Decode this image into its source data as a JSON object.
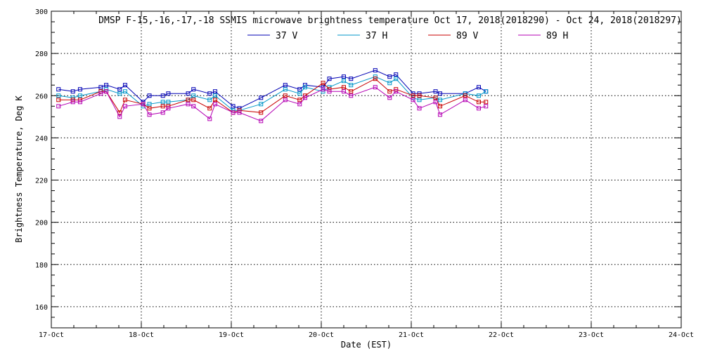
{
  "chart_data": {
    "type": "line",
    "title": "DMSP F-15,-16,-17,-18 SSMIS microwave brightness temperature Oct 17, 2018(2018290) - Oct 24, 2018(2018297)",
    "xlabel": "Date (EST)",
    "ylabel": "Brightness Temperature, Deg K",
    "xlim": [
      0,
      7
    ],
    "ylim": [
      150,
      300
    ],
    "x_ticks": [
      0,
      1,
      2,
      3,
      4,
      5,
      6,
      7
    ],
    "x_tick_labels": [
      "17-Oct",
      "18-Oct",
      "19-Oct",
      "20-Oct",
      "21-Oct",
      "22-Oct",
      "23-Oct",
      "24-Oct"
    ],
    "y_ticks": [
      160,
      180,
      200,
      220,
      240,
      260,
      280,
      300
    ],
    "grid": true,
    "legend_position": "top-center",
    "series": [
      {
        "name": "37 V",
        "color": "#0000b4",
        "x": [
          0.08,
          0.24,
          0.32,
          0.55,
          0.61,
          0.76,
          0.82,
          1.02,
          1.09,
          1.24,
          1.3,
          1.52,
          1.58,
          1.76,
          1.82,
          2.02,
          2.09,
          2.33,
          2.6,
          2.76,
          2.82,
          3.02,
          3.09,
          3.25,
          3.33,
          3.6,
          3.76,
          3.83,
          4.02,
          4.09,
          4.27,
          4.32,
          4.6,
          4.75,
          4.83
        ],
        "y": [
          263,
          262,
          263,
          264,
          265,
          263,
          265,
          257,
          260,
          260,
          261,
          261,
          263,
          261,
          262,
          255,
          254,
          259,
          265,
          263,
          265,
          264,
          268,
          269,
          268,
          272,
          269,
          270,
          261,
          261,
          262,
          261,
          261,
          264,
          262
        ]
      },
      {
        "name": "37 H",
        "color": "#0096c8",
        "x": [
          0.08,
          0.24,
          0.32,
          0.55,
          0.61,
          0.76,
          0.82,
          1.02,
          1.09,
          1.24,
          1.3,
          1.52,
          1.58,
          1.76,
          1.82,
          2.02,
          2.09,
          2.33,
          2.6,
          2.76,
          2.82,
          3.02,
          3.09,
          3.25,
          3.33,
          3.6,
          3.76,
          3.83,
          4.02,
          4.09,
          4.27,
          4.32,
          4.6,
          4.75,
          4.83
        ],
        "y": [
          260,
          259,
          260,
          262,
          263,
          261,
          262,
          255,
          256,
          257,
          257,
          258,
          260,
          258,
          260,
          253,
          253,
          256,
          263,
          261,
          264,
          262,
          264,
          267,
          265,
          269,
          266,
          268,
          259,
          258,
          259,
          258,
          261,
          260,
          262
        ]
      },
      {
        "name": "89 V",
        "color": "#c80000",
        "x": [
          0.08,
          0.24,
          0.32,
          0.55,
          0.61,
          0.76,
          0.82,
          1.02,
          1.09,
          1.24,
          1.3,
          1.52,
          1.58,
          1.76,
          1.82,
          2.02,
          2.09,
          2.33,
          2.6,
          2.76,
          2.82,
          3.02,
          3.09,
          3.25,
          3.33,
          3.6,
          3.76,
          3.83,
          4.02,
          4.09,
          4.27,
          4.32,
          4.6,
          4.75,
          4.83
        ],
        "y": [
          258,
          258,
          258,
          262,
          262,
          252,
          258,
          256,
          254,
          255,
          255,
          258,
          258,
          254,
          258,
          252,
          253,
          252,
          260,
          258,
          260,
          266,
          263,
          264,
          262,
          268,
          262,
          263,
          260,
          260,
          259,
          255,
          260,
          257,
          257
        ]
      },
      {
        "name": "89 H",
        "color": "#b400b4",
        "x": [
          0.08,
          0.24,
          0.32,
          0.55,
          0.61,
          0.76,
          0.82,
          1.02,
          1.09,
          1.24,
          1.3,
          1.52,
          1.58,
          1.76,
          1.82,
          2.02,
          2.09,
          2.33,
          2.6,
          2.76,
          2.82,
          3.02,
          3.09,
          3.25,
          3.33,
          3.6,
          3.76,
          3.83,
          4.02,
          4.09,
          4.27,
          4.32,
          4.6,
          4.75,
          4.83
        ],
        "y": [
          255,
          257,
          257,
          261,
          262,
          250,
          255,
          256,
          251,
          252,
          254,
          256,
          255,
          249,
          256,
          252,
          252,
          248,
          258,
          256,
          259,
          263,
          262,
          262,
          260,
          264,
          259,
          262,
          258,
          254,
          257,
          251,
          258,
          254,
          255
        ]
      }
    ]
  }
}
